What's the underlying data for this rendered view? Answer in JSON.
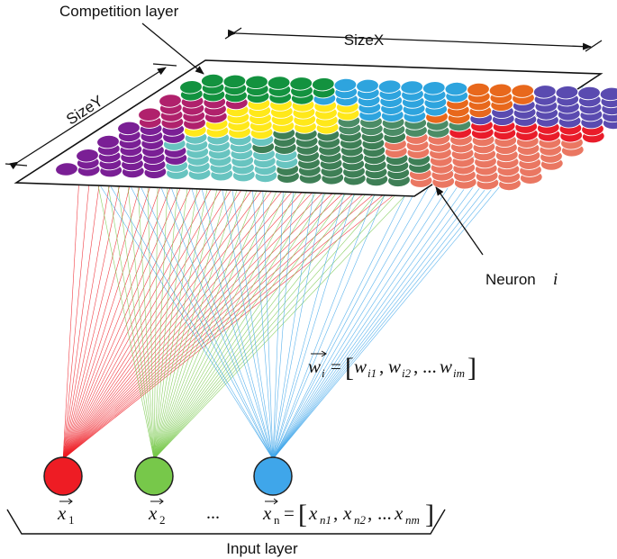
{
  "labels": {
    "competition_layer": "Competition layer",
    "size_x": "SizeX",
    "size_y": "SizeY",
    "neuron": "Neuron",
    "neuron_index": "i",
    "input_layer": "Input layer",
    "ellipsis": "..."
  },
  "weight_formula": {
    "lhs": "w",
    "lhs_sub": "i",
    "eq": "=",
    "open": "[",
    "t1": "w",
    "t1_sub": "i1",
    "comma1": ",",
    "t2": "w",
    "t2_sub": "i2",
    "comma2": ",",
    "dots": "...",
    "t3": "w",
    "t3_sub": "im",
    "close": "]"
  },
  "inputs": [
    {
      "symbol": "x",
      "sub": "1",
      "color": "#ee1c24"
    },
    {
      "symbol": "x",
      "sub": "2",
      "color": "#77c84a"
    },
    {
      "symbol": "x",
      "sub": "n",
      "color": "#3fa6ea"
    }
  ],
  "input_vector": {
    "eq": "=",
    "open": "[",
    "t1": "x",
    "t1_sub": "n1",
    "comma1": ",",
    "t2": "x",
    "t2_sub": "n2",
    "comma2": ",",
    "dots": "...",
    "t3": "x",
    "t3_sub": "nm",
    "close": "]"
  },
  "cluster_colors": {
    "green": "#13923f",
    "blue": "#2ea4de",
    "orange": "#e8681c",
    "violet": "#5a4bb0",
    "magenta": "#b0216c",
    "yellow": "#ffe81a",
    "sea": "#4b8c66",
    "red": "#e91c2a",
    "purple": "#7a1f95",
    "teal": "#68c4c0",
    "forest": "#3e7f56",
    "salmon": "#ea7762"
  }
}
